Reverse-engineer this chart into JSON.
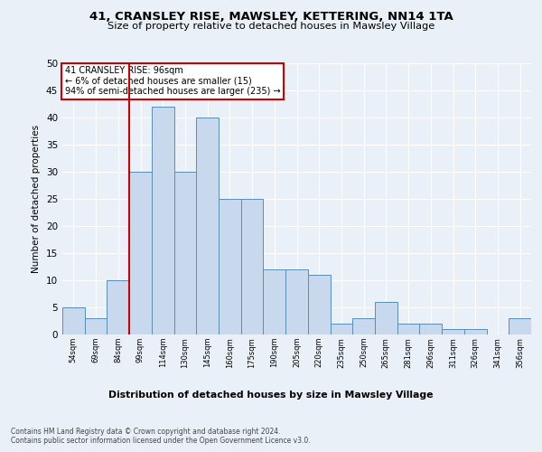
{
  "title1": "41, CRANSLEY RISE, MAWSLEY, KETTERING, NN14 1TA",
  "title2": "Size of property relative to detached houses in Mawsley Village",
  "xlabel": "Distribution of detached houses by size in Mawsley Village",
  "ylabel": "Number of detached properties",
  "categories": [
    "54sqm",
    "69sqm",
    "84sqm",
    "99sqm",
    "114sqm",
    "130sqm",
    "145sqm",
    "160sqm",
    "175sqm",
    "190sqm",
    "205sqm",
    "220sqm",
    "235sqm",
    "250sqm",
    "265sqm",
    "281sqm",
    "296sqm",
    "311sqm",
    "326sqm",
    "341sqm",
    "356sqm"
  ],
  "values": [
    5,
    3,
    10,
    30,
    42,
    30,
    40,
    25,
    25,
    12,
    12,
    11,
    2,
    3,
    6,
    2,
    2,
    1,
    1,
    0,
    3
  ],
  "bar_color": "#c9d9ed",
  "bar_edge_color": "#5b8db8",
  "vline_color": "#cc0000",
  "vline_pos": 2.5,
  "annotation_title": "41 CRANSLEY RISE: 96sqm",
  "annotation_line1": "← 6% of detached houses are smaller (15)",
  "annotation_line2": "94% of semi-detached houses are larger (235) →",
  "annotation_box_color": "#cc0000",
  "ylim": [
    0,
    50
  ],
  "yticks": [
    0,
    5,
    10,
    15,
    20,
    25,
    30,
    35,
    40,
    45,
    50
  ],
  "footer1": "Contains HM Land Registry data © Crown copyright and database right 2024.",
  "footer2": "Contains public sector information licensed under the Open Government Licence v3.0.",
  "bg_color": "#eaf0f8",
  "plot_bg_color": "#eaf0f8"
}
